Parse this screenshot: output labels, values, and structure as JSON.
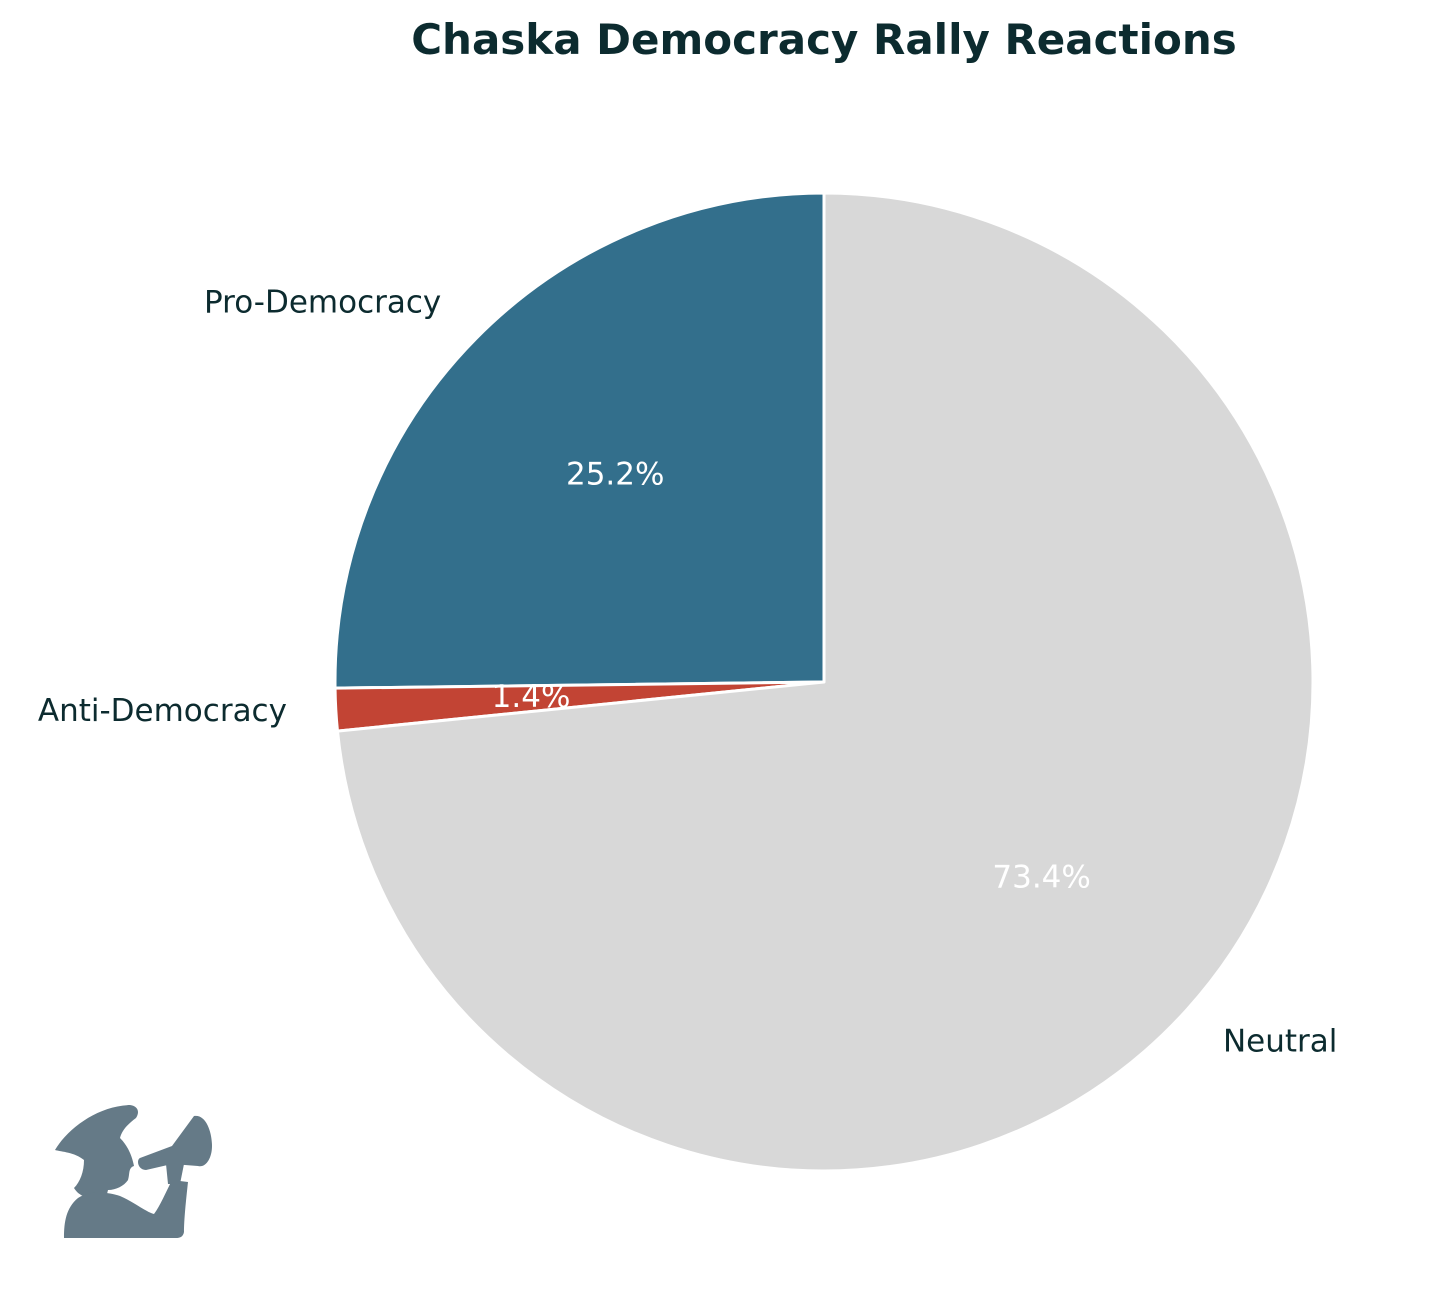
{
  "chart_data": {
    "type": "pie",
    "title": "Chaska Democracy Rally Reactions",
    "categories": [
      "Pro-Democracy",
      "Anti-Democracy",
      "Neutral"
    ],
    "values": [
      25.2,
      1.4,
      73.4
    ],
    "value_labels": [
      "25.2%",
      "1.4%",
      "73.4%"
    ],
    "colors": [
      "#336f8c",
      "#c24434",
      "#d8d8d8"
    ],
    "start_angle_deg": 90,
    "direction": "counterclockwise",
    "label_color": "#0c2b2f",
    "value_label_color": "#ffffff",
    "wedge_edge_color": "#ffffff",
    "legend": "none"
  },
  "logo": {
    "icon": "protester-megaphone-icon",
    "color": "#657a87"
  }
}
